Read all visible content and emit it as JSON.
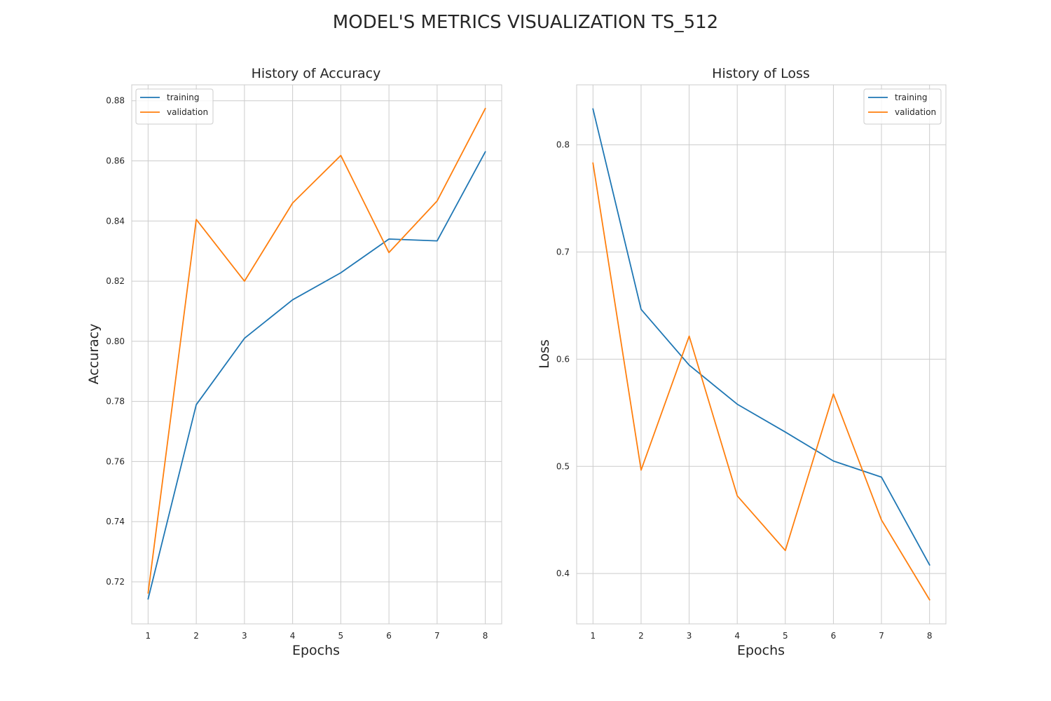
{
  "figure": {
    "title": "MODEL'S METRICS VISUALIZATION TS_512"
  },
  "chart_data": [
    {
      "type": "line",
      "title": "History of Accuracy",
      "xlabel": "Epochs",
      "ylabel": "Accuracy",
      "x": [
        1,
        2,
        3,
        4,
        5,
        6,
        7,
        8
      ],
      "xticks": [
        "1",
        "2",
        "3",
        "4",
        "5",
        "6",
        "7",
        "8"
      ],
      "xlim": [
        0.66,
        8.34
      ],
      "yticks": [
        "0.72",
        "0.74",
        "0.76",
        "0.78",
        "0.80",
        "0.82",
        "0.84",
        "0.86",
        "0.88"
      ],
      "ylim": [
        0.706,
        0.8853
      ],
      "grid": true,
      "legend_position": "upper-left",
      "series": [
        {
          "name": "training",
          "color": "#1f77b4",
          "values": [
            0.7143,
            0.7789,
            0.801,
            0.8138,
            0.8228,
            0.834,
            0.8334,
            0.863
          ]
        },
        {
          "name": "validation",
          "color": "#ff7f0e",
          "values": [
            0.7163,
            0.8405,
            0.82,
            0.846,
            0.8618,
            0.8295,
            0.8467,
            0.8774
          ]
        }
      ]
    },
    {
      "type": "line",
      "title": "History of Loss",
      "xlabel": "Epochs",
      "ylabel": "Loss",
      "x": [
        1,
        2,
        3,
        4,
        5,
        6,
        7,
        8
      ],
      "xticks": [
        "1",
        "2",
        "3",
        "4",
        "5",
        "6",
        "7",
        "8"
      ],
      "xlim": [
        0.66,
        8.34
      ],
      "yticks": [
        "0.4",
        "0.5",
        "0.6",
        "0.7",
        "0.8"
      ],
      "ylim": [
        0.353,
        0.856
      ],
      "grid": true,
      "legend_position": "upper-right",
      "series": [
        {
          "name": "training",
          "color": "#1f77b4",
          "values": [
            0.8335,
            0.6465,
            0.5945,
            0.558,
            0.532,
            0.505,
            0.49,
            0.408
          ]
        },
        {
          "name": "validation",
          "color": "#ff7f0e",
          "values": [
            0.783,
            0.4965,
            0.6215,
            0.4725,
            0.4215,
            0.5675,
            0.45,
            0.3755
          ]
        }
      ]
    }
  ]
}
